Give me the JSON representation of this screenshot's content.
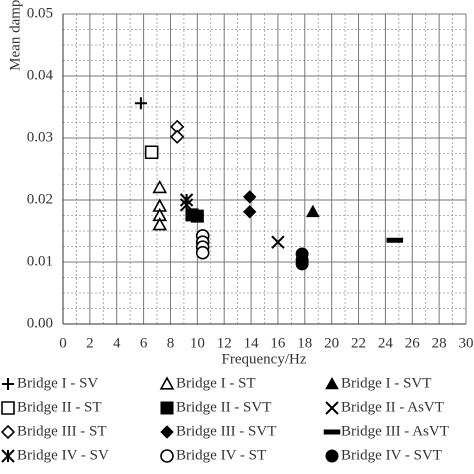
{
  "chart_data": {
    "type": "scatter",
    "x_label": "Frequency/Hz",
    "y_label": "Mean damping ratio",
    "xlim": [
      0,
      30
    ],
    "xticks": [
      0,
      2,
      4,
      6,
      8,
      10,
      12,
      14,
      16,
      18,
      20,
      22,
      24,
      26,
      28,
      30
    ],
    "ylim": [
      0,
      0.05
    ],
    "yticks": [
      {
        "value": 0,
        "label": "0.00"
      },
      0.01,
      0.02,
      0.03,
      0.04,
      0.05
    ],
    "grid": true,
    "series": [
      {
        "name": "Bridge I - SV",
        "marker": "plus",
        "color": "#000",
        "x": [
          5.8
        ],
        "y": [
          0.0356
        ]
      },
      {
        "name": "Bridge I - ST",
        "marker": "triangle-open",
        "color": "#000",
        "x": [
          7.2,
          7.2,
          7.2,
          7.2
        ],
        "y": [
          0.022,
          0.019,
          0.0175,
          0.016
        ]
      },
      {
        "name": "Bridge I - SVT",
        "marker": "triangle",
        "color": "#000",
        "x": [
          18.6
        ],
        "y": [
          0.0181
        ]
      },
      {
        "name": "Bridge II - ST",
        "marker": "square-open",
        "color": "#000",
        "x": [
          6.6
        ],
        "y": [
          0.0277
        ]
      },
      {
        "name": "Bridge II - SVT",
        "marker": "square",
        "color": "#000",
        "x": [
          9.6,
          10.0
        ],
        "y": [
          0.0176,
          0.0174
        ]
      },
      {
        "name": "Bridge II - AsVT",
        "marker": "x",
        "color": "#000",
        "x": [
          16.0
        ],
        "y": [
          0.0132
        ]
      },
      {
        "name": "Bridge III - ST",
        "marker": "diamond-open",
        "color": "#000",
        "x": [
          8.5,
          8.5
        ],
        "y": [
          0.0318,
          0.0302
        ]
      },
      {
        "name": "Bridge III - SVT",
        "marker": "diamond",
        "color": "#000",
        "x": [
          13.9,
          13.9
        ],
        "y": [
          0.0205,
          0.0181
        ]
      },
      {
        "name": "Bridge III - AsVT",
        "marker": "dash",
        "color": "#000",
        "x": [
          24.7
        ],
        "y": [
          0.0135
        ]
      },
      {
        "name": "Bridge IV - SV",
        "marker": "asterisk",
        "color": "#000",
        "x": [
          9.2,
          9.2
        ],
        "y": [
          0.02,
          0.0192
        ]
      },
      {
        "name": "Bridge IV - ST",
        "marker": "circle-open",
        "color": "#000",
        "x": [
          10.4,
          10.4,
          10.4,
          10.4
        ],
        "y": [
          0.0142,
          0.0132,
          0.0124,
          0.0115
        ]
      },
      {
        "name": "Bridge IV - SVT",
        "marker": "circle",
        "color": "#000",
        "x": [
          17.8,
          17.8,
          17.8
        ],
        "y": [
          0.0113,
          0.0103,
          0.0097
        ]
      }
    ]
  }
}
